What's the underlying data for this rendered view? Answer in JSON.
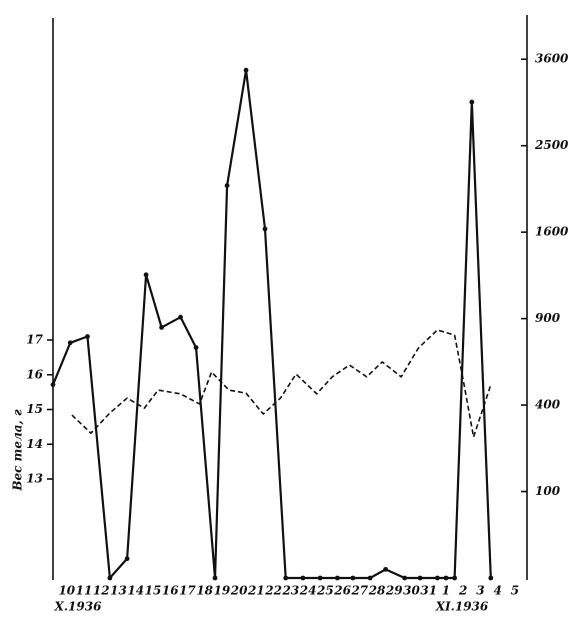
{
  "chart_data": {
    "type": "line",
    "ylabel": "Вес тела, г",
    "annotations": [
      "X.1936",
      "XI.1936"
    ],
    "xlim": [
      9.2,
      36.7
    ],
    "xticks": [
      10,
      11,
      12,
      13,
      14,
      15,
      16,
      17,
      18,
      19,
      20,
      21,
      22,
      23,
      24,
      25,
      26,
      27,
      28,
      29,
      30,
      31,
      {
        "value": 32,
        "label": "1"
      },
      {
        "value": 33,
        "label": "2"
      },
      {
        "value": 34,
        "label": "3"
      },
      {
        "value": 35,
        "label": "4"
      },
      {
        "value": 36,
        "label": "5"
      }
    ],
    "ylim": [
      10.15,
      26.27
    ],
    "yticks": [
      13,
      14,
      15,
      16,
      17
    ],
    "y2lim": [
      0,
      4240
    ],
    "y2scale": "sqrt",
    "y2ticks": [
      100,
      400,
      900,
      1600,
      2500,
      3600
    ],
    "series": [
      {
        "color": "#111111",
        "line_style": "solid",
        "markers": true,
        "axis": "y2",
        "x": [
          9.2,
          10.2,
          11.2,
          12.5,
          13.5,
          14.6,
          15.5,
          16.6,
          17.5,
          18.6,
          19.3,
          20.4,
          21.5,
          22.7,
          23.7,
          24.7,
          25.7,
          26.6,
          27.6,
          28.5,
          29.6,
          30.5,
          31.5,
          32.0,
          32.5,
          33.5,
          34.6
        ],
        "values": [
          500,
          740,
          780,
          0,
          5,
          1230,
          840,
          910,
          710,
          0,
          2060,
          3450,
          1630,
          0,
          0,
          0,
          0,
          0,
          0,
          1,
          0,
          0,
          0,
          0,
          0,
          3030,
          0
        ]
      },
      {
        "color": "#111111",
        "line_style": "dashed",
        "markers": false,
        "x": [
          10.3,
          11.4,
          12.5,
          13.5,
          14.5,
          15.3,
          16.6,
          17.7,
          18.4,
          19.4,
          20.4,
          21.4,
          22.4,
          23.3,
          24.5,
          25.4,
          26.4,
          27.4,
          28.3,
          29.4,
          30.4,
          31.5,
          32.5,
          33.0,
          33.6,
          34.6
        ],
        "values": [
          14.84,
          14.32,
          14.9,
          15.33,
          15.04,
          15.56,
          15.45,
          15.16,
          16.08,
          15.56,
          15.47,
          14.87,
          15.33,
          16.02,
          15.45,
          15.94,
          16.28,
          15.94,
          16.37,
          15.94,
          16.77,
          17.29,
          17.14,
          15.85,
          14.21,
          15.71
        ]
      }
    ]
  }
}
